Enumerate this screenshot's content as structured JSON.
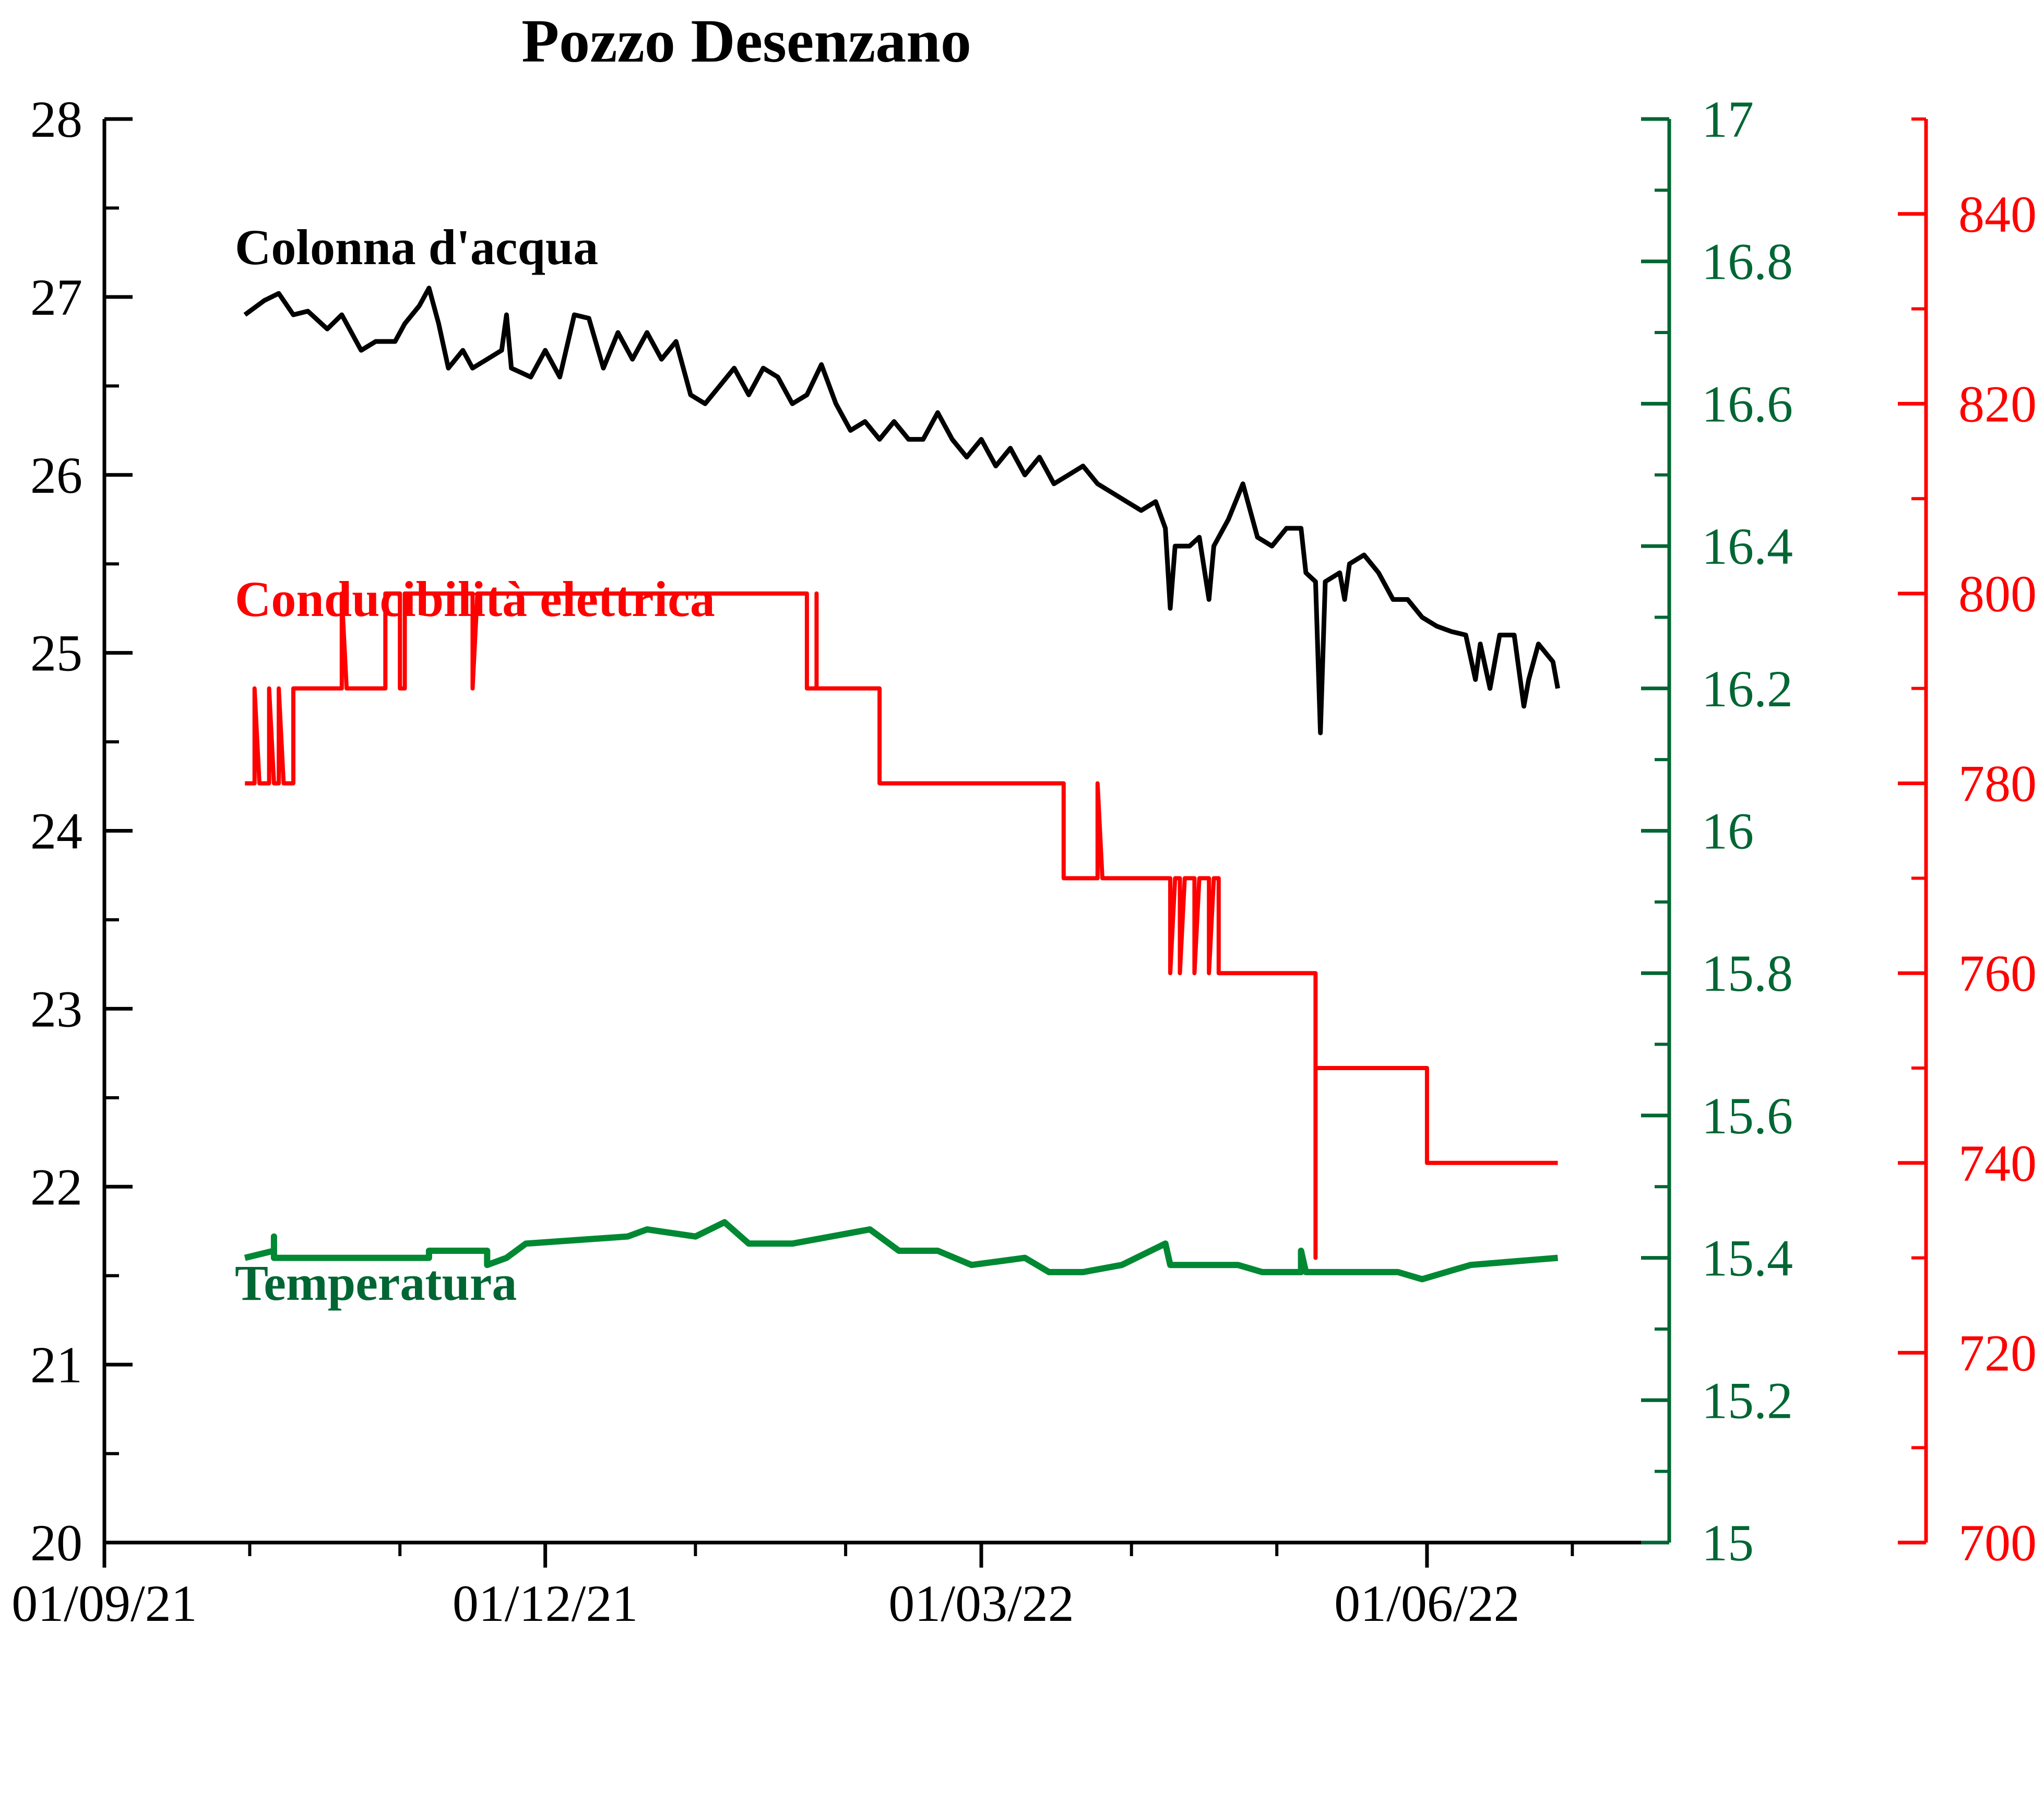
{
  "chart_data": {
    "type": "line",
    "title": "Pozzo Desenzano",
    "x_ticks": [
      "01/09/21",
      "01/12/21",
      "01/03/22",
      "01/06/22"
    ],
    "x_tick_dates": [
      "2021-09-01",
      "2021-12-01",
      "2022-03-01",
      "2022-06-01"
    ],
    "x_minor_tick_dates": [
      "2021-10-01",
      "2021-11-01",
      "2022-01-01",
      "2022-02-01",
      "2022-04-01",
      "2022-05-01",
      "2022-07-01"
    ],
    "xlim": [
      "2021-09-01",
      "2022-07-21"
    ],
    "grid": false,
    "axes": {
      "left": {
        "ylim": [
          20,
          28
        ],
        "ticks": [
          "20",
          "21",
          "22",
          "23",
          "24",
          "25",
          "26",
          "27",
          "28"
        ],
        "color": "#000000"
      },
      "right1": {
        "ylim": [
          15,
          17
        ],
        "ticks": [
          "15",
          "15.2",
          "15.4",
          "15.6",
          "15.8",
          "16",
          "16.2",
          "16.4",
          "16.6",
          "16.8",
          "17"
        ],
        "color": "#006633"
      },
      "right2": {
        "ylim": [
          700,
          850
        ],
        "ticks": [
          "700",
          "720",
          "740",
          "760",
          "780",
          "800",
          "820",
          "840"
        ],
        "color": "#ff0000"
      }
    },
    "series": [
      {
        "name": "Colonna d'acqua",
        "axis": "left",
        "color": "#000000",
        "points": [
          [
            "2021-09-30",
            26.9
          ],
          [
            "2021-10-04",
            26.98
          ],
          [
            "2021-10-07",
            27.02
          ],
          [
            "2021-10-10",
            26.9
          ],
          [
            "2021-10-13",
            26.92
          ],
          [
            "2021-10-17",
            26.82
          ],
          [
            "2021-10-20",
            26.9
          ],
          [
            "2021-10-24",
            26.7
          ],
          [
            "2021-10-27",
            26.75
          ],
          [
            "2021-10-31",
            26.75
          ],
          [
            "2021-11-02",
            26.85
          ],
          [
            "2021-11-05",
            26.95
          ],
          [
            "2021-11-07",
            27.05
          ],
          [
            "2021-11-09",
            26.85
          ],
          [
            "2021-11-11",
            26.6
          ],
          [
            "2021-11-14",
            26.7
          ],
          [
            "2021-11-16",
            26.6
          ],
          [
            "2021-11-19",
            26.65
          ],
          [
            "2021-11-22",
            26.7
          ],
          [
            "2021-11-23",
            26.9
          ],
          [
            "2021-11-24",
            26.6
          ],
          [
            "2021-11-28",
            26.55
          ],
          [
            "2021-12-01",
            26.7
          ],
          [
            "2021-12-04",
            26.55
          ],
          [
            "2021-12-07",
            26.9
          ],
          [
            "2021-12-10",
            26.88
          ],
          [
            "2021-12-13",
            26.6
          ],
          [
            "2021-12-16",
            26.8
          ],
          [
            "2021-12-19",
            26.65
          ],
          [
            "2021-12-22",
            26.8
          ],
          [
            "2021-12-25",
            26.65
          ],
          [
            "2021-12-28",
            26.75
          ],
          [
            "2021-12-31",
            26.45
          ],
          [
            "2022-01-03",
            26.4
          ],
          [
            "2022-01-06",
            26.5
          ],
          [
            "2022-01-09",
            26.6
          ],
          [
            "2022-01-12",
            26.45
          ],
          [
            "2022-01-15",
            26.6
          ],
          [
            "2022-01-18",
            26.55
          ],
          [
            "2022-01-21",
            26.4
          ],
          [
            "2022-01-24",
            26.45
          ],
          [
            "2022-01-27",
            26.62
          ],
          [
            "2022-01-30",
            26.4
          ],
          [
            "2022-02-02",
            26.25
          ],
          [
            "2022-02-05",
            26.3
          ],
          [
            "2022-02-08",
            26.2
          ],
          [
            "2022-02-11",
            26.3
          ],
          [
            "2022-02-14",
            26.2
          ],
          [
            "2022-02-17",
            26.2
          ],
          [
            "2022-02-20",
            26.35
          ],
          [
            "2022-02-23",
            26.2
          ],
          [
            "2022-02-26",
            26.1
          ],
          [
            "2022-03-01",
            26.2
          ],
          [
            "2022-03-04",
            26.05
          ],
          [
            "2022-03-07",
            26.15
          ],
          [
            "2022-03-10",
            26.0
          ],
          [
            "2022-03-13",
            26.1
          ],
          [
            "2022-03-16",
            25.95
          ],
          [
            "2022-03-19",
            26.0
          ],
          [
            "2022-03-22",
            26.05
          ],
          [
            "2022-03-25",
            25.95
          ],
          [
            "2022-03-28",
            25.9
          ],
          [
            "2022-03-31",
            25.85
          ],
          [
            "2022-04-03",
            25.8
          ],
          [
            "2022-04-06",
            25.85
          ],
          [
            "2022-04-08",
            25.7
          ],
          [
            "2022-04-09",
            25.25
          ],
          [
            "2022-04-10",
            25.6
          ],
          [
            "2022-04-13",
            25.6
          ],
          [
            "2022-04-15",
            25.65
          ],
          [
            "2022-04-17",
            25.3
          ],
          [
            "2022-04-18",
            25.6
          ],
          [
            "2022-04-21",
            25.75
          ],
          [
            "2022-04-24",
            25.95
          ],
          [
            "2022-04-27",
            25.65
          ],
          [
            "2022-04-30",
            25.6
          ],
          [
            "2022-05-03",
            25.7
          ],
          [
            "2022-05-06",
            25.7
          ],
          [
            "2022-05-07",
            25.45
          ],
          [
            "2022-05-09",
            25.4
          ],
          [
            "2022-05-10",
            24.55
          ],
          [
            "2022-05-11",
            25.4
          ],
          [
            "2022-05-14",
            25.45
          ],
          [
            "2022-05-15",
            25.3
          ],
          [
            "2022-05-16",
            25.5
          ],
          [
            "2022-05-19",
            25.55
          ],
          [
            "2022-05-22",
            25.45
          ],
          [
            "2022-05-25",
            25.3
          ],
          [
            "2022-05-28",
            25.3
          ],
          [
            "2022-05-31",
            25.2
          ],
          [
            "2022-06-03",
            25.15
          ],
          [
            "2022-06-06",
            25.12
          ],
          [
            "2022-06-09",
            25.1
          ],
          [
            "2022-06-11",
            24.85
          ],
          [
            "2022-06-12",
            25.05
          ],
          [
            "2022-06-14",
            24.8
          ],
          [
            "2022-06-16",
            25.1
          ],
          [
            "2022-06-19",
            25.1
          ],
          [
            "2022-06-21",
            24.7
          ],
          [
            "2022-06-22",
            24.85
          ],
          [
            "2022-06-24",
            25.05
          ],
          [
            "2022-06-27",
            24.95
          ],
          [
            "2022-06-28",
            24.8
          ]
        ]
      },
      {
        "name": "Conducibilità elettrica",
        "axis": "right2",
        "color": "#ff0000",
        "points": [
          [
            "2021-09-30",
            780
          ],
          [
            "2021-10-02",
            780
          ],
          [
            "2021-10-02",
            790
          ],
          [
            "2021-10-03",
            780
          ],
          [
            "2021-10-05",
            780
          ],
          [
            "2021-10-05",
            790
          ],
          [
            "2021-10-06",
            780
          ],
          [
            "2021-10-07",
            780
          ],
          [
            "2021-10-07",
            790
          ],
          [
            "2021-10-08",
            780
          ],
          [
            "2021-10-10",
            780
          ],
          [
            "2021-10-10",
            790
          ],
          [
            "2021-10-20",
            790
          ],
          [
            "2021-10-20",
            800
          ],
          [
            "2021-10-21",
            790
          ],
          [
            "2021-10-29",
            790
          ],
          [
            "2021-10-29",
            800
          ],
          [
            "2021-11-01",
            800
          ],
          [
            "2021-11-01",
            790
          ],
          [
            "2021-11-02",
            790
          ],
          [
            "2021-11-02",
            800
          ],
          [
            "2021-11-16",
            800
          ],
          [
            "2021-11-16",
            790
          ],
          [
            "2021-11-17",
            800
          ],
          [
            "2022-01-24",
            800
          ],
          [
            "2022-01-24",
            790
          ],
          [
            "2022-01-26",
            790
          ],
          [
            "2022-01-26",
            800
          ],
          [
            "2022-01-26",
            790
          ],
          [
            "2022-02-08",
            790
          ],
          [
            "2022-02-08",
            780
          ],
          [
            "2022-03-18",
            780
          ],
          [
            "2022-03-18",
            770
          ],
          [
            "2022-03-25",
            770
          ],
          [
            "2022-03-25",
            780
          ],
          [
            "2022-03-26",
            770
          ],
          [
            "2022-04-09",
            770
          ],
          [
            "2022-04-09",
            760
          ],
          [
            "2022-04-10",
            770
          ],
          [
            "2022-04-11",
            770
          ],
          [
            "2022-04-11",
            760
          ],
          [
            "2022-04-12",
            770
          ],
          [
            "2022-04-14",
            770
          ],
          [
            "2022-04-14",
            760
          ],
          [
            "2022-04-15",
            770
          ],
          [
            "2022-04-17",
            770
          ],
          [
            "2022-04-17",
            760
          ],
          [
            "2022-04-18",
            770
          ],
          [
            "2022-04-19",
            770
          ],
          [
            "2022-04-19",
            760
          ],
          [
            "2022-05-09",
            760
          ],
          [
            "2022-05-09",
            730
          ],
          [
            "2022-05-09",
            750
          ],
          [
            "2022-06-01",
            750
          ],
          [
            "2022-06-01",
            740
          ],
          [
            "2022-06-28",
            740
          ]
        ]
      },
      {
        "name": "Temperatura",
        "axis": "right1",
        "color": "#008833",
        "points": [
          [
            "2021-09-30",
            15.4
          ],
          [
            "2021-10-06",
            15.41
          ],
          [
            "2021-10-06",
            15.43
          ],
          [
            "2021-10-06",
            15.4
          ],
          [
            "2021-11-07",
            15.4
          ],
          [
            "2021-11-07",
            15.41
          ],
          [
            "2021-11-19",
            15.41
          ],
          [
            "2021-11-19",
            15.39
          ],
          [
            "2021-11-23",
            15.4
          ],
          [
            "2021-11-27",
            15.42
          ],
          [
            "2021-12-18",
            15.43
          ],
          [
            "2021-12-22",
            15.44
          ],
          [
            "2022-01-01",
            15.43
          ],
          [
            "2022-01-07",
            15.45
          ],
          [
            "2022-01-12",
            15.42
          ],
          [
            "2022-01-21",
            15.42
          ],
          [
            "2022-02-06",
            15.44
          ],
          [
            "2022-02-12",
            15.41
          ],
          [
            "2022-02-20",
            15.41
          ],
          [
            "2022-02-27",
            15.39
          ],
          [
            "2022-03-10",
            15.4
          ],
          [
            "2022-03-15",
            15.38
          ],
          [
            "2022-03-22",
            15.38
          ],
          [
            "2022-03-30",
            15.39
          ],
          [
            "2022-04-08",
            15.42
          ],
          [
            "2022-04-09",
            15.39
          ],
          [
            "2022-04-23",
            15.39
          ],
          [
            "2022-04-28",
            15.38
          ],
          [
            "2022-05-06",
            15.38
          ],
          [
            "2022-05-06",
            15.41
          ],
          [
            "2022-05-07",
            15.38
          ],
          [
            "2022-05-26",
            15.38
          ],
          [
            "2022-05-31",
            15.37
          ],
          [
            "2022-06-10",
            15.39
          ],
          [
            "2022-06-28",
            15.4
          ]
        ]
      }
    ],
    "annotations": [
      {
        "text": "Colonna d'acqua",
        "color": "#000000"
      },
      {
        "text": "Conducibilità elettrica",
        "color": "#ff0000"
      },
      {
        "text": "Temperatura",
        "color": "#006633"
      }
    ]
  }
}
